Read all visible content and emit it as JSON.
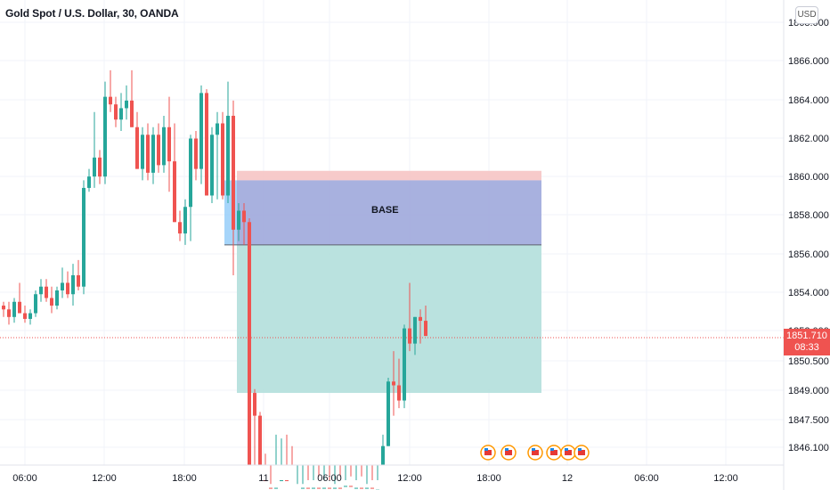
{
  "header": {
    "title": "Gold Spot / U.S. Dollar, 30, OANDA",
    "currency_button": "USD"
  },
  "price_tag": {
    "price": "1851.710",
    "countdown": "08:33"
  },
  "zone_label": "BASE",
  "colors": {
    "up": "#26a69a",
    "down": "#ef5350",
    "zone_base": "#9fa9dc",
    "zone_target": "#b2dfdb",
    "zone_stop": "#f6c4c4"
  },
  "chart_data": {
    "type": "candlestick",
    "title": "Gold Spot / U.S. Dollar, 30, OANDA",
    "y_axis": {
      "tick_labels": [
        "1868.000",
        "1866.000",
        "1864.000",
        "1862.000",
        "1860.000",
        "1858.000",
        "1856.000",
        "1854.000",
        "1852.000",
        "1850.500",
        "1849.000",
        "1847.500",
        "1846.100"
      ],
      "range": [
        1845.0,
        1869.5
      ]
    },
    "x_axis": {
      "tick_labels": [
        "06:00",
        "12:00",
        "18:00",
        "11",
        "06:00",
        "12:00",
        "18:00",
        "12",
        "06:00",
        "12:00"
      ]
    },
    "current_price": 1851.71,
    "zones": [
      {
        "name": "stop",
        "top": 1860.5,
        "bottom": 1860.0
      },
      {
        "name": "BASE",
        "top": 1860.0,
        "bottom": 1856.6
      },
      {
        "name": "target",
        "top": 1856.6,
        "bottom": 1848.8
      }
    ],
    "candles": [
      [
        1853.4,
        1853.6,
        1852.8,
        1853.2
      ],
      [
        1853.2,
        1853.6,
        1852.4,
        1852.8
      ],
      [
        1852.8,
        1853.8,
        1852.5,
        1853.6
      ],
      [
        1853.6,
        1854.6,
        1853.2,
        1853.0
      ],
      [
        1853.0,
        1853.4,
        1852.5,
        1852.7
      ],
      [
        1852.7,
        1853.2,
        1852.4,
        1853.0
      ],
      [
        1853.0,
        1854.2,
        1852.8,
        1854.0
      ],
      [
        1854.0,
        1854.8,
        1853.6,
        1854.4
      ],
      [
        1854.4,
        1854.8,
        1853.6,
        1853.8
      ],
      [
        1853.8,
        1854.4,
        1853.0,
        1853.4
      ],
      [
        1853.4,
        1854.4,
        1853.2,
        1854.2
      ],
      [
        1854.2,
        1855.4,
        1853.8,
        1854.6
      ],
      [
        1854.6,
        1855.2,
        1853.8,
        1854.0
      ],
      [
        1854.0,
        1855.6,
        1853.4,
        1855.0
      ],
      [
        1855.0,
        1855.8,
        1854.2,
        1854.4
      ],
      [
        1854.4,
        1860.0,
        1854.0,
        1859.6
      ],
      [
        1859.6,
        1860.6,
        1859.4,
        1860.2
      ],
      [
        1860.2,
        1863.6,
        1859.6,
        1861.2
      ],
      [
        1861.2,
        1861.6,
        1859.8,
        1860.2
      ],
      [
        1860.2,
        1865.2,
        1859.8,
        1864.4
      ],
      [
        1864.4,
        1865.8,
        1863.6,
        1864.0
      ],
      [
        1864.0,
        1864.4,
        1862.8,
        1863.2
      ],
      [
        1863.2,
        1864.6,
        1862.6,
        1863.8
      ],
      [
        1863.8,
        1865.0,
        1863.2,
        1864.2
      ],
      [
        1864.2,
        1865.8,
        1862.8,
        1862.8
      ],
      [
        1862.8,
        1863.6,
        1860.6,
        1860.6
      ],
      [
        1860.6,
        1862.8,
        1860.0,
        1862.4
      ],
      [
        1862.4,
        1863.0,
        1860.0,
        1860.4
      ],
      [
        1860.4,
        1862.8,
        1859.8,
        1862.4
      ],
      [
        1862.4,
        1863.0,
        1860.4,
        1860.8
      ],
      [
        1860.8,
        1863.4,
        1860.4,
        1862.8
      ],
      [
        1862.8,
        1864.4,
        1859.4,
        1861.0
      ],
      [
        1861.0,
        1863.0,
        1857.8,
        1857.8
      ],
      [
        1857.8,
        1858.4,
        1856.8,
        1857.2
      ],
      [
        1857.2,
        1859.0,
        1856.6,
        1858.6
      ],
      [
        1858.6,
        1862.4,
        1856.8,
        1862.2
      ],
      [
        1862.2,
        1862.6,
        1860.0,
        1860.6
      ],
      [
        1860.6,
        1865.0,
        1859.8,
        1864.6
      ],
      [
        1864.6,
        1864.8,
        1859.2,
        1859.2
      ],
      [
        1859.2,
        1862.8,
        1858.8,
        1862.4
      ],
      [
        1862.4,
        1863.6,
        1859.0,
        1863.0
      ],
      [
        1863.0,
        1863.6,
        1859.0,
        1859.2
      ],
      [
        1859.2,
        1865.2,
        1858.8,
        1863.4
      ],
      [
        1863.4,
        1864.2,
        1855.0,
        1857.4
      ],
      [
        1857.4,
        1858.8,
        1856.8,
        1858.4
      ],
      [
        1858.4,
        1858.8,
        1856.6,
        1857.8
      ],
      [
        1857.8,
        1858.0,
        1844.0,
        1844.0
      ],
      [
        1848.8,
        1849.0,
        1845.0,
        1847.6
      ],
      [
        1847.6,
        1847.8,
        1844.0,
        1844.2
      ],
      [
        1844.2,
        1845.6,
        1843.4,
        1843.8
      ],
      [
        1843.8,
        1844.0,
        1843.2,
        1843.4
      ],
      [
        1843.4,
        1846.6,
        1843.0,
        1843.8
      ],
      [
        1843.8,
        1846.4,
        1843.0,
        1844.2
      ],
      [
        1844.2,
        1846.6,
        1843.0,
        1843.6
      ],
      [
        1843.6,
        1846.0,
        1842.8,
        1843.4
      ],
      [
        1843.4,
        1844.0,
        1843.0,
        1843.6
      ],
      [
        1843.6,
        1844.0,
        1843.0,
        1843.8
      ],
      [
        1843.8,
        1844.2,
        1843.0,
        1843.5
      ],
      [
        1843.5,
        1844.2,
        1843.0,
        1843.8
      ],
      [
        1843.8,
        1844.4,
        1843.0,
        1843.6
      ],
      [
        1843.6,
        1844.2,
        1843.0,
        1843.8
      ],
      [
        1843.8,
        1844.2,
        1843.0,
        1843.5
      ],
      [
        1843.5,
        1844.0,
        1843.0,
        1843.8
      ],
      [
        1843.8,
        1844.4,
        1843.0,
        1843.6
      ],
      [
        1843.6,
        1844.2,
        1843.0,
        1843.9
      ],
      [
        1843.9,
        1844.4,
        1843.0,
        1843.5
      ],
      [
        1843.5,
        1844.2,
        1843.0,
        1843.8
      ],
      [
        1843.8,
        1844.4,
        1843.0,
        1843.6
      ],
      [
        1843.6,
        1844.0,
        1843.0,
        1843.8
      ],
      [
        1843.8,
        1844.2,
        1843.0,
        1843.5
      ],
      [
        1843.5,
        1844.2,
        1843.0,
        1843.7
      ],
      [
        1843.7,
        1846.6,
        1843.2,
        1846.0
      ],
      [
        1846.0,
        1849.6,
        1846.0,
        1849.4
      ],
      [
        1849.4,
        1851.0,
        1847.6,
        1849.2
      ],
      [
        1849.2,
        1850.6,
        1848.0,
        1848.4
      ],
      [
        1848.4,
        1852.4,
        1848.0,
        1852.2
      ],
      [
        1852.2,
        1854.6,
        1851.0,
        1851.4
      ],
      [
        1851.4,
        1852.8,
        1850.8,
        1852.8
      ],
      [
        1852.8,
        1853.2,
        1851.4,
        1852.6
      ],
      [
        1852.6,
        1853.4,
        1851.8,
        1851.8
      ]
    ]
  }
}
